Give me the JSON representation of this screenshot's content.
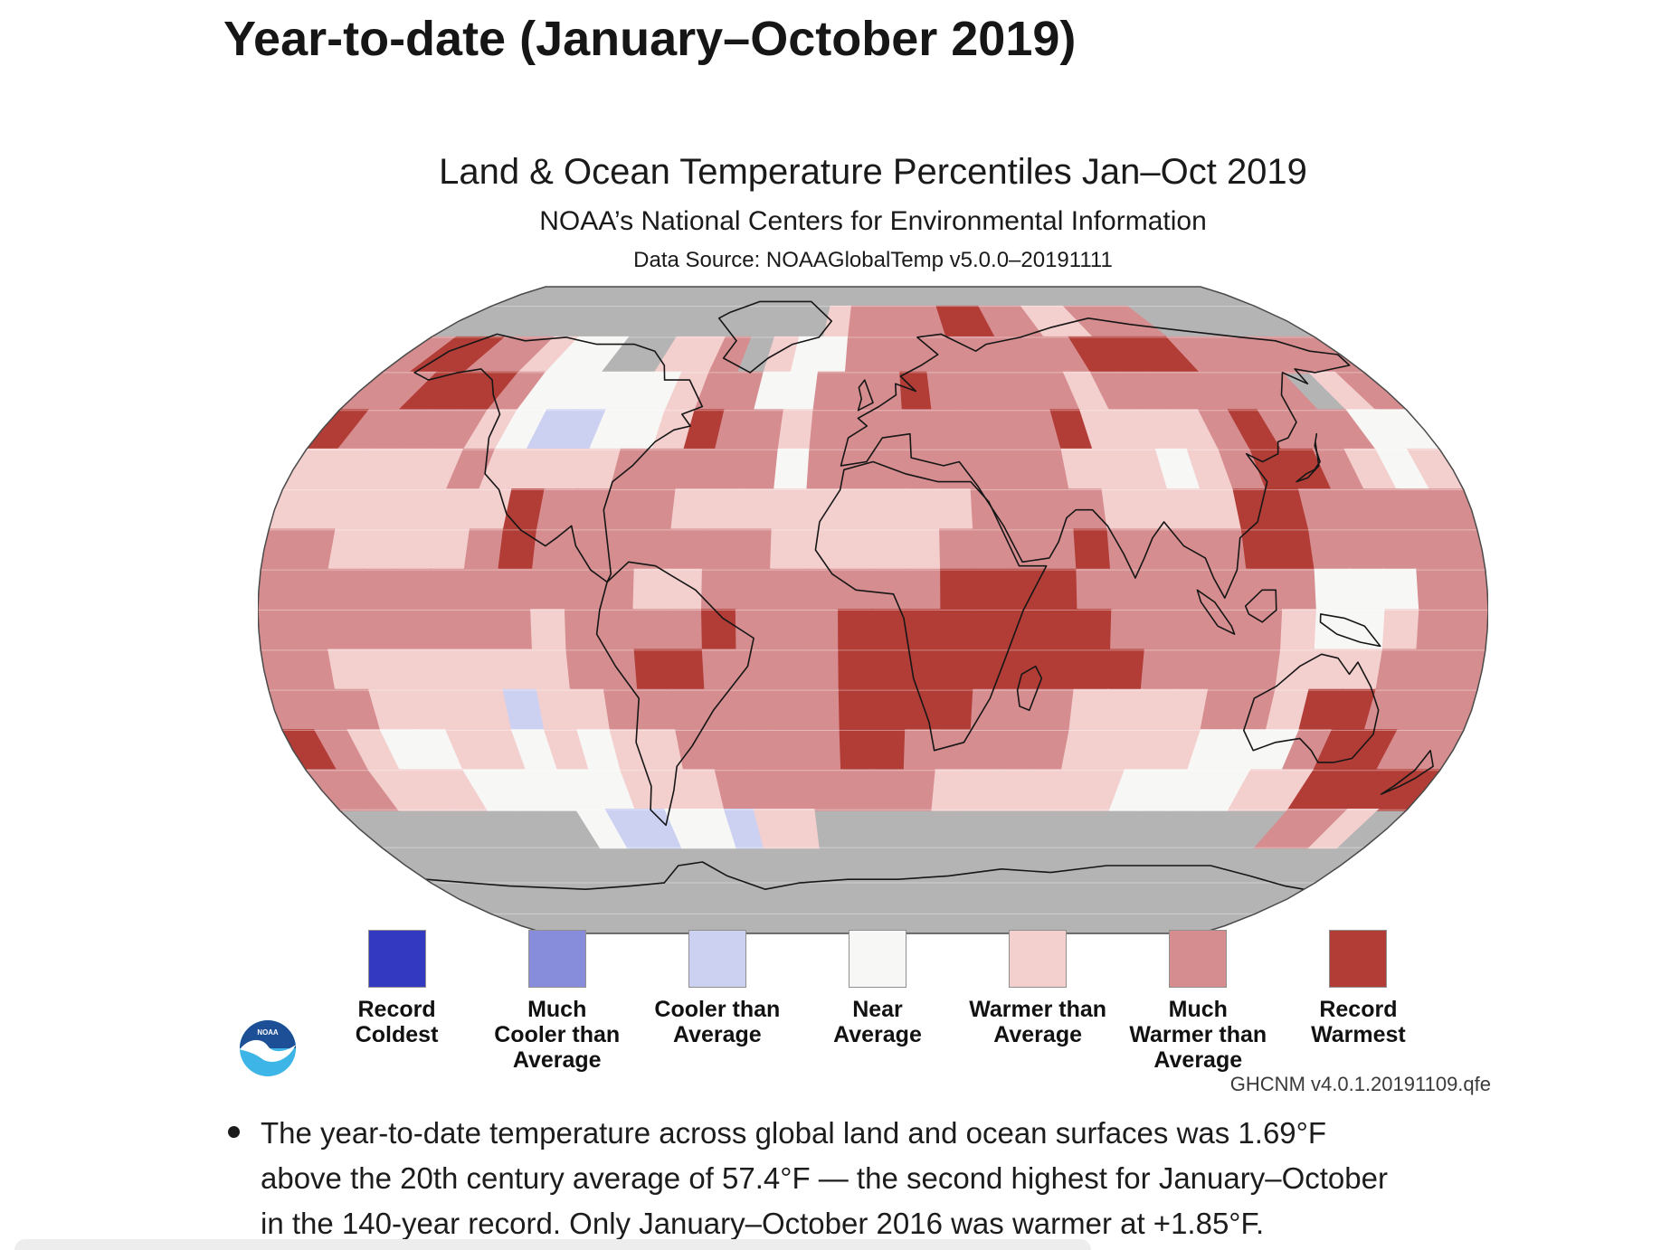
{
  "heading": {
    "text": "Year-to-date (January–October 2019)"
  },
  "figure": {
    "title": "Land & Ocean Temperature Percentiles Jan–Oct 2019",
    "subtitle": "NOAA’s National Centers for Environmental Information",
    "data_source": "Data Source: NOAAGlobalTemp v5.0.0–20191111",
    "footnote": "GHCNM v4.0.1.20191109.qfe",
    "logo_text": "NOAA"
  },
  "legend": {
    "items": [
      {
        "label": "Record\nColdest",
        "color": "#3439c2"
      },
      {
        "label": "Much\nCooler than\nAverage",
        "color": "#878cdb"
      },
      {
        "label": "Cooler than\nAverage",
        "color": "#ccd1f2"
      },
      {
        "label": "Near\nAverage",
        "color": "#f7f7f5"
      },
      {
        "label": "Warmer than\nAverage",
        "color": "#f3cfce"
      },
      {
        "label": "Much\nWarmer than\nAverage",
        "color": "#d68d8f"
      },
      {
        "label": "Record\nWarmest",
        "color": "#b23c36"
      }
    ]
  },
  "chart_data": {
    "type": "heatmap",
    "subtype": "global-temperature-percentile-map",
    "projection": "robinson",
    "title": "Land & Ocean Temperature Percentiles Jan–Oct 2019",
    "categories": [
      "Record Coldest",
      "Much Cooler than Average",
      "Cooler than Average",
      "Near Average",
      "Warmer than Average",
      "Much Warmer than Average",
      "Record Warmest"
    ],
    "cell_size_deg": 10,
    "rows": "18 rows, latitude 90N to 90S (north to south)",
    "cols": "36 columns, longitude 180W to 180E (west to east)",
    "key": {
      "G": "no data",
      "B": "Record Coldest",
      "C": "Much Cooler than Average",
      "c": "Cooler than Average",
      "N": "Near Average",
      "w": "Warmer than Average",
      "M": "Much Warmer than Average",
      "R": "Record Warmest"
    },
    "palette": {
      "G": "#b4b4b4",
      "B": "#3439c2",
      "C": "#878cdb",
      "c": "#ccd1f2",
      "N": "#f7f7f5",
      "w": "#f3cfce",
      "M": "#d68d8f",
      "R": "#b23c36"
    },
    "grid": [
      "GGGGGGGGGGGGGGGGGGGGGGGGGGGGGGGGGGGG",
      "GGGGGGGGGGGGGGGGwMMMMRRMMwwMMMGGGGGG",
      "MRRMMwNNGGwwMGwNNMMMMMMMMMRRRRMMMMMM",
      "MMRRRMNNNNNwMMNNMMMRMMMMMwMMMMMMMGwM",
      "RMMMMwNccNNwRMMwMMMMMMMMRwwwwMRMMMNN",
      "wwwwwMwwwwMMMMMNMMMMMMMMwwwNwMRRMwNw",
      "wwwwwwwRMMMMwwwwwwwwwMMMMwwwwRRMMMMM",
      "MMwwwwMRMMMMMMMwwwwwMMMMRMMMMRRMMMMM",
      "MMMMMMMMMMMwwMMMMMMMRRRRMMMMMMMNNNMM",
      "MMMMMMMMwMMMMRMMMRRRRRRRRMMMMMwNNwMM",
      "MMwwwwwwwMMRRMMMMRRRRRRRRRMMMMwwwMMM",
      "MMMwwwwcwwMMMMMMMRRRRMMMwwwwMMwRRMMM",
      "RMwNNwwNwNwwMMMMMRRMMMMMwwwwNNNMRRMM",
      "MMwwwNNNNNwwwMMMMMMMwwwwwwNNNNwwRRRR",
      "GGGGGGGGNccNNcwwGGGGGGGGGGGGGGGGMMwG",
      "GGGGGGGGGGGGGGGGGGGGGGGGGGGGGGGGGGGG",
      "GGGGGGGGGGGGGGGGGGGGGGGGGGGGGGGGGGGG",
      "GGGGGGGGGGGGGGGGGGGGGGGGGGGGGGGGGGGG"
    ]
  },
  "bullet": {
    "text": "The year-to-date temperature across global land and ocean surfaces was 1.69°F above the 20th century average of 57.4°F — the second highest for January–October in the 140-year record. Only January–October 2016 was warmer at +1.85°F."
  }
}
